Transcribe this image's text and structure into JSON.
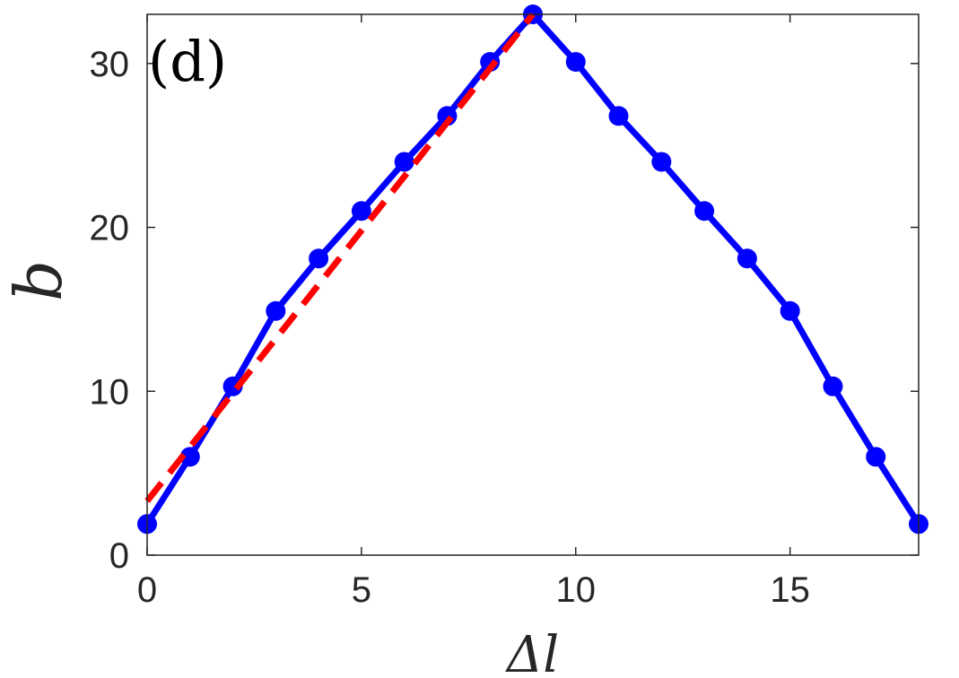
{
  "chart_data": {
    "type": "line",
    "panel_label": "(d)",
    "xlabel": "Δl",
    "ylabel": "b",
    "xlim": [
      0,
      18
    ],
    "ylim": [
      0,
      33
    ],
    "xticks": [
      0,
      5,
      10,
      15
    ],
    "yticks": [
      0,
      10,
      20,
      30
    ],
    "grid": false,
    "series": [
      {
        "style": "solid-markers",
        "color": "#0000ff",
        "x": [
          0,
          1,
          2,
          3,
          4,
          5,
          6,
          7,
          8,
          9,
          10,
          11,
          12,
          13,
          14,
          15,
          16,
          17,
          18
        ],
        "y": [
          1.9,
          6.0,
          10.3,
          14.9,
          18.1,
          21.0,
          24.0,
          26.8,
          30.1,
          33.0,
          30.1,
          26.8,
          24.0,
          21.0,
          18.1,
          14.9,
          10.3,
          6.0,
          1.9
        ]
      },
      {
        "style": "dashed",
        "color": "#ff0000",
        "x": [
          0,
          9
        ],
        "y": [
          3.3,
          33.0
        ]
      }
    ]
  }
}
